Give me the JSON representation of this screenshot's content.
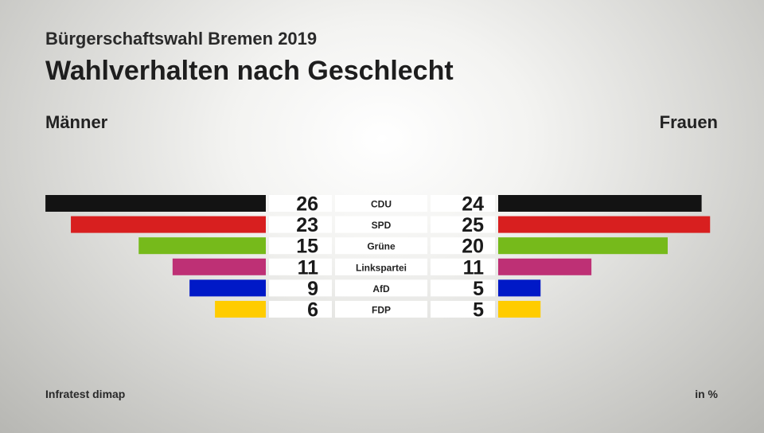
{
  "header": {
    "subtitle": "Bürgerschaftswahl Bremen 2019",
    "title": "Wahlverhalten nach Geschlecht"
  },
  "labels": {
    "left": "Männer",
    "right": "Frauen"
  },
  "footer": {
    "source": "Infratest dimap",
    "unit": "in %"
  },
  "chart_data": {
    "type": "bar",
    "orientation": "horizontal-butterfly",
    "categories": [
      "CDU",
      "SPD",
      "Grüne",
      "Linkspartei",
      "AfD",
      "FDP"
    ],
    "series": [
      {
        "name": "Männer",
        "values": [
          26,
          23,
          15,
          11,
          9,
          6
        ]
      },
      {
        "name": "Frauen",
        "values": [
          24,
          25,
          20,
          11,
          5,
          5
        ]
      }
    ],
    "colors": [
      "#131313",
      "#d81f1f",
      "#76ba1b",
      "#be3075",
      "#0019c7",
      "#ffcc00"
    ],
    "unit": "in %",
    "grid": false
  }
}
